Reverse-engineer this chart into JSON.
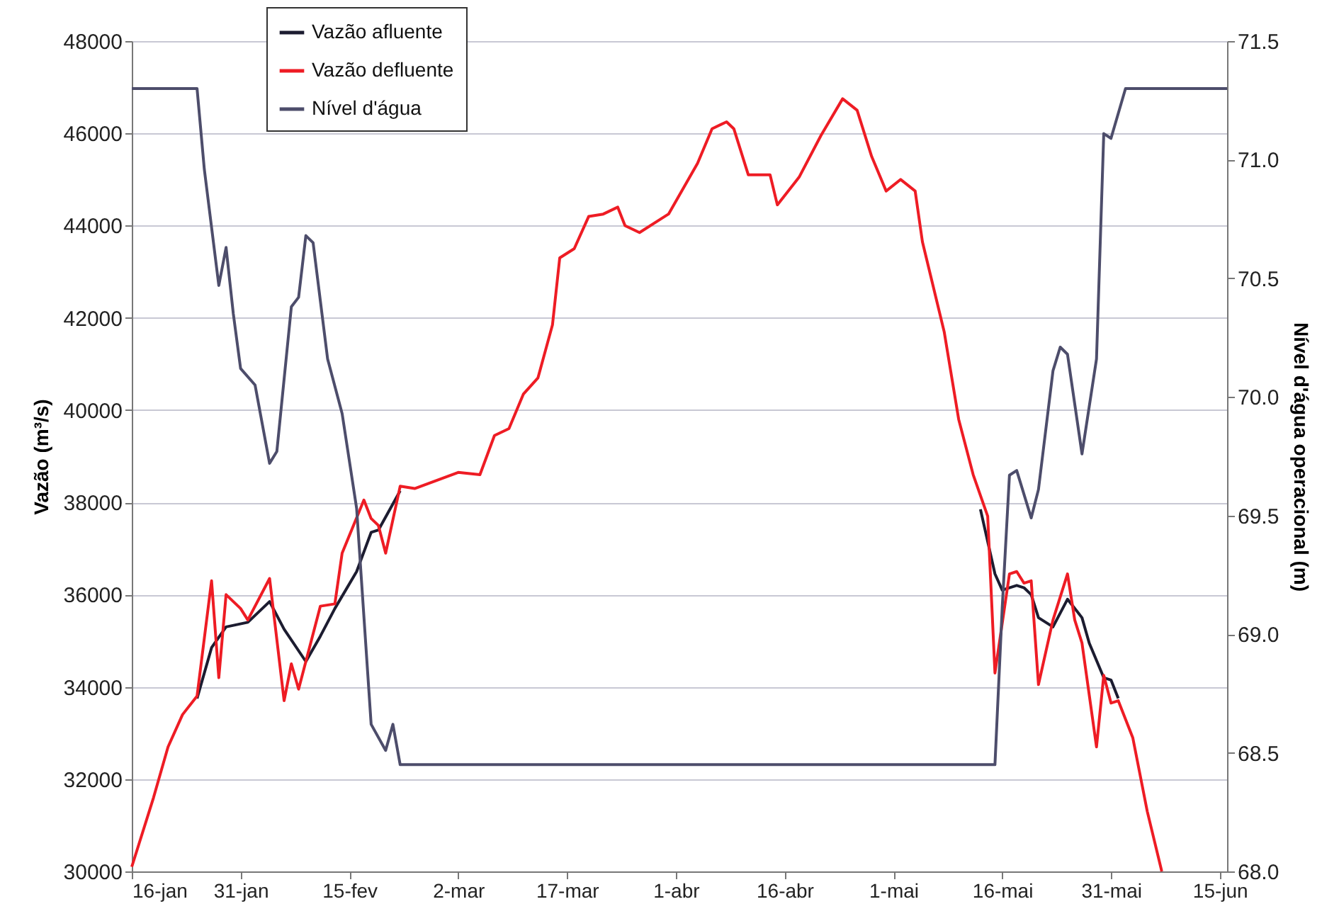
{
  "chart_data": {
    "type": "line",
    "ylabel": "Vazão (m³/s)",
    "y2label": "Nível d'água operacional (m)",
    "xlim": [
      "--01-16",
      "--06-16"
    ],
    "xticks": [
      {
        "value": "--01-16",
        "label": "16-jan"
      },
      {
        "value": "--01-31",
        "label": "31-jan"
      },
      {
        "value": "--02-15",
        "label": "15-fev"
      },
      {
        "value": "--03-02",
        "label": "2-mar"
      },
      {
        "value": "--03-17",
        "label": "17-mar"
      },
      {
        "value": "--04-01",
        "label": "1-abr"
      },
      {
        "value": "--04-16",
        "label": "16-abr"
      },
      {
        "value": "--05-01",
        "label": "1-mai"
      },
      {
        "value": "--05-16",
        "label": "16-mai"
      },
      {
        "value": "--05-31",
        "label": "31-mai"
      },
      {
        "value": "--06-15",
        "label": "15-jun"
      }
    ],
    "ylim": [
      30000,
      48000
    ],
    "yticks": [
      30000,
      32000,
      34000,
      36000,
      38000,
      40000,
      42000,
      44000,
      46000,
      48000
    ],
    "y2lim": [
      68,
      71.5
    ],
    "y2ticks": [
      {
        "value": 68,
        "label": "68.0"
      },
      68.5,
      {
        "value": 69,
        "label": "69.0"
      },
      69.5,
      {
        "value": 70,
        "label": "70.0"
      },
      70.5,
      {
        "value": 71,
        "label": "71.0"
      },
      71.5
    ],
    "grid": "y",
    "legend": "top left",
    "series": [
      {
        "name": "Vazão afluente",
        "color": "#1c1c30",
        "x": [
          "--01-25",
          "--01-27",
          "--01-29",
          "--02-01",
          "--02-04",
          "--02-06",
          "--02-09",
          "--02-11",
          "--02-13",
          "--02-16",
          "--02-18",
          "--02-19",
          "--02-22",
          null,
          "--05-13",
          "--05-15",
          "--05-16",
          "--05-18",
          "--05-19",
          "--05-20",
          "--05-21",
          "--05-23",
          "--05-25",
          "--05-27",
          "--05-28",
          "--05-30",
          "--05-31",
          "--06-01"
        ],
        "values": [
          33750,
          34850,
          35300,
          35400,
          35850,
          35250,
          34550,
          35100,
          35700,
          36500,
          37350,
          37400,
          38250,
          null,
          37850,
          36450,
          36100,
          36200,
          36150,
          36000,
          35500,
          35300,
          35900,
          35500,
          34950,
          34200,
          34150,
          33750
        ]
      },
      {
        "name": "Vazão defluente",
        "color": "#ee1c24",
        "x": [
          "--01-16",
          "--01-19",
          "--01-21",
          "--01-23",
          "--01-25",
          "--01-27",
          "--01-28",
          "--01-29",
          "--01-31",
          "--02-01",
          "--02-04",
          "--02-06",
          "--02-07",
          "--02-08",
          "--02-11",
          "--02-13",
          "--02-14",
          "--02-17",
          "--02-18",
          "--02-19",
          "--02-20",
          "--02-22",
          "--02-24",
          "--03-02",
          "--03-05",
          "--03-07",
          "--03-09",
          "--03-11",
          "--03-13",
          "--03-15",
          "--03-16",
          "--03-18",
          "--03-20",
          "--03-22",
          "--03-24",
          "--03-25",
          "--03-27",
          "--03-30",
          "--03-31",
          "--04-04",
          "--04-06",
          "--04-08",
          "--04-09",
          "--04-11",
          "--04-14",
          "--04-15",
          "--04-18",
          "--04-21",
          "--04-24",
          "--04-26",
          "--04-28",
          "--04-30",
          "--05-02",
          "--05-04",
          "--05-05",
          "--05-08",
          "--05-10",
          "--05-12",
          "--05-14",
          "--05-15",
          "--05-17",
          "--05-18",
          "--05-19",
          "--05-20",
          "--05-21",
          "--05-23",
          "--05-25",
          "--05-26",
          "--05-27",
          "--05-29",
          "--05-30",
          "--05-31",
          "--06-01",
          "--06-03",
          "--06-05",
          "--06-07"
        ],
        "values": [
          30100,
          31600,
          32700,
          33400,
          33800,
          36300,
          34200,
          36000,
          35700,
          35450,
          36350,
          33700,
          34500,
          33950,
          35750,
          35800,
          36900,
          38050,
          37650,
          37500,
          36900,
          38350,
          38300,
          38650,
          38600,
          39450,
          39600,
          40350,
          40700,
          41850,
          43300,
          43500,
          44200,
          44250,
          44400,
          44000,
          43850,
          44150,
          44250,
          45350,
          46100,
          46250,
          46100,
          45100,
          45100,
          44450,
          45050,
          45950,
          46750,
          46500,
          45500,
          44750,
          45000,
          44750,
          43650,
          41700,
          39800,
          38600,
          37700,
          34300,
          36450,
          36500,
          36250,
          36300,
          34050,
          35450,
          36450,
          35450,
          34950,
          32700,
          34250,
          33650,
          33700,
          32900,
          31300,
          30000
        ]
      },
      {
        "name": "Nível d'água",
        "color": "#4d4d6b",
        "axis": "y2",
        "x": [
          "--01-16",
          "--01-25",
          "--01-26",
          "--01-28",
          "--01-29",
          "--01-30",
          "--01-31",
          "--02-02",
          "--02-04",
          "--02-05",
          "--02-07",
          "--02-08",
          "--02-09",
          "--02-10",
          "--02-12",
          "--02-14",
          "--02-16",
          "--02-18",
          "--02-20",
          "--02-21",
          "--02-22",
          "--05-15",
          "--05-16",
          "--05-17",
          "--05-18",
          "--05-20",
          "--05-21",
          "--05-23",
          "--05-24",
          "--05-25",
          "--05-27",
          "--05-29",
          "--05-30",
          "--05-31",
          "--06-02",
          "--06-16"
        ],
        "values": [
          71.3,
          71.3,
          70.96,
          70.47,
          70.63,
          70.35,
          70.12,
          70.05,
          69.72,
          69.77,
          70.38,
          70.42,
          70.68,
          70.65,
          70.16,
          69.93,
          69.53,
          68.62,
          68.51,
          68.62,
          68.45,
          68.45,
          69.11,
          69.67,
          69.69,
          69.49,
          69.61,
          70.11,
          70.21,
          70.18,
          69.76,
          70.16,
          71.11,
          71.09,
          71.3,
          71.3
        ]
      }
    ]
  }
}
